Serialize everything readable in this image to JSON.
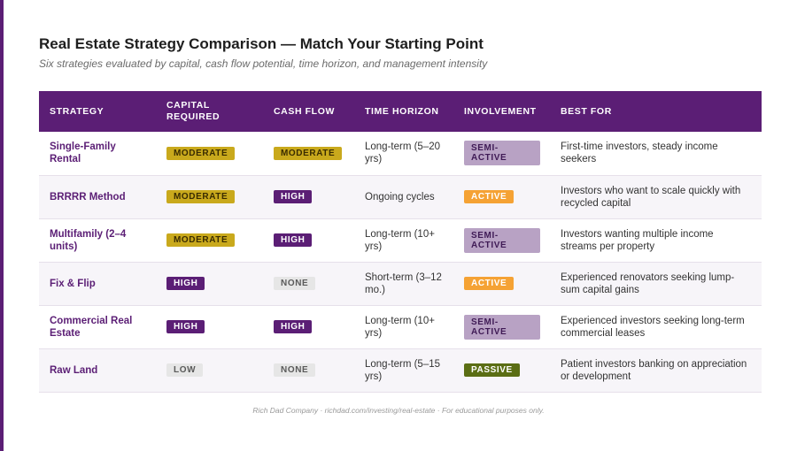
{
  "title": "Real Estate Strategy Comparison — Match Your Starting Point",
  "subtitle": "Six strategies evaluated by capital, cash flow potential, time horizon, and management intensity",
  "columns": [
    "STRATEGY",
    "CAPITAL REQUIRED",
    "CASH FLOW",
    "TIME HORIZON",
    "INVOLVEMENT",
    "BEST FOR"
  ],
  "rows": [
    {
      "strategy": "Single-Family Rental",
      "capital": "MODERATE",
      "cash_flow": "MODERATE",
      "time_horizon": "Long-term (5–20 yrs)",
      "involvement": "SEMI-ACTIVE",
      "best_for": "First-time investors, steady income seekers"
    },
    {
      "strategy": "BRRRR Method",
      "capital": "MODERATE",
      "cash_flow": "HIGH",
      "time_horizon": "Ongoing cycles",
      "involvement": "ACTIVE",
      "best_for": "Investors who want to scale quickly with recycled capital"
    },
    {
      "strategy": "Multifamily (2–4 units)",
      "capital": "MODERATE",
      "cash_flow": "HIGH",
      "time_horizon": "Long-term (10+ yrs)",
      "involvement": "SEMI-ACTIVE",
      "best_for": "Investors wanting multiple income streams per property"
    },
    {
      "strategy": "Fix & Flip",
      "capital": "HIGH",
      "cash_flow": "NONE",
      "time_horizon": "Short-term (3–12 mo.)",
      "involvement": "ACTIVE",
      "best_for": "Experienced renovators seeking lump-sum capital gains"
    },
    {
      "strategy": "Commercial Real Estate",
      "capital": "HIGH",
      "cash_flow": "HIGH",
      "time_horizon": "Long-term (10+ yrs)",
      "involvement": "SEMI-ACTIVE",
      "best_for": "Experienced investors seeking long-term commercial leases"
    },
    {
      "strategy": "Raw Land",
      "capital": "LOW",
      "cash_flow": "NONE",
      "time_horizon": "Long-term (5–15 yrs)",
      "involvement": "PASSIVE",
      "best_for": "Patient investors banking on appreciation or development"
    }
  ],
  "footer": "Rich Dad Company · richdad.com/investing/real-estate · For educational purposes only.",
  "colors": {
    "purple": "#5b1e75",
    "moderate": "#c9a91c",
    "active": "#f5a234",
    "semi_active": "#b8a2c4",
    "passive": "#5b6e14",
    "neutral": "#e6e6e6"
  }
}
